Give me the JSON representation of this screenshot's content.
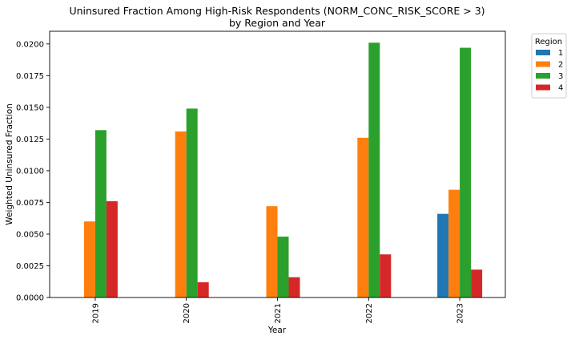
{
  "chart_data": {
    "type": "bar",
    "title": "Uninsured Fraction Among High-Risk Respondents (NORM_CONC_RISK_SCORE > 3)",
    "subtitle": "by Region and Year",
    "xlabel": "Year",
    "ylabel": "Weighted Uninsured Fraction",
    "categories": [
      "2019",
      "2020",
      "2021",
      "2022",
      "2023"
    ],
    "ylim": [
      0,
      0.021
    ],
    "yticks": [
      "0.0000",
      "0.0025",
      "0.0050",
      "0.0075",
      "0.0100",
      "0.0125",
      "0.0150",
      "0.0175",
      "0.0200"
    ],
    "legend_title": "Region",
    "legend_position": "outside-top-right",
    "grid": false,
    "series": [
      {
        "name": "1",
        "color": "#1f77b4",
        "values": [
          0,
          0,
          0,
          0,
          0.0066
        ]
      },
      {
        "name": "2",
        "color": "#ff7f0e",
        "values": [
          0.006,
          0.0131,
          0.0072,
          0.0126,
          0.0085
        ]
      },
      {
        "name": "3",
        "color": "#2ca02c",
        "values": [
          0.0132,
          0.0149,
          0.0048,
          0.0201,
          0.0197
        ]
      },
      {
        "name": "4",
        "color": "#d62728",
        "values": [
          0.0076,
          0.0012,
          0.0016,
          0.0034,
          0.0022
        ]
      }
    ]
  }
}
